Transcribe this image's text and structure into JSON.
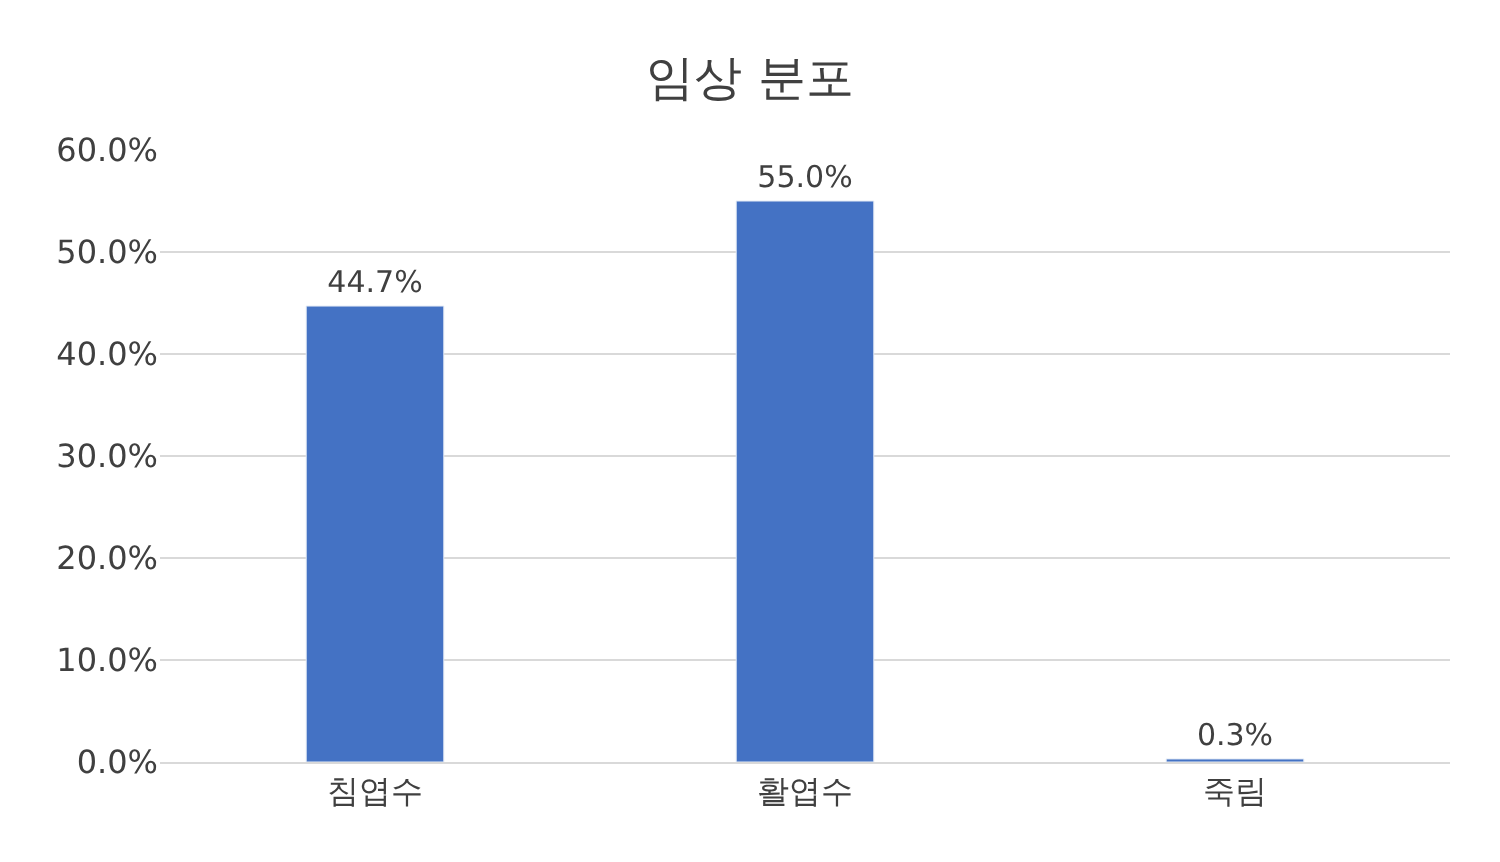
{
  "chart_data": {
    "type": "bar",
    "title": "임상 분포",
    "categories": [
      "침엽수",
      "활엽수",
      "죽림"
    ],
    "values": [
      44.7,
      55.0,
      0.3
    ],
    "value_labels": [
      "44.7%",
      "55.0%",
      "0.3%"
    ],
    "color": "#4472c4",
    "ylim": [
      0,
      60
    ],
    "yticks": [
      {
        "value": 0,
        "label": "0.0%"
      },
      {
        "value": 10,
        "label": "10.0%"
      },
      {
        "value": 20,
        "label": "20.0%"
      },
      {
        "value": 30,
        "label": "30.0%"
      },
      {
        "value": 40,
        "label": "40.0%"
      },
      {
        "value": 50,
        "label": "50.0%"
      },
      {
        "value": 60,
        "label": "60.0%"
      }
    ],
    "grid": "y"
  }
}
